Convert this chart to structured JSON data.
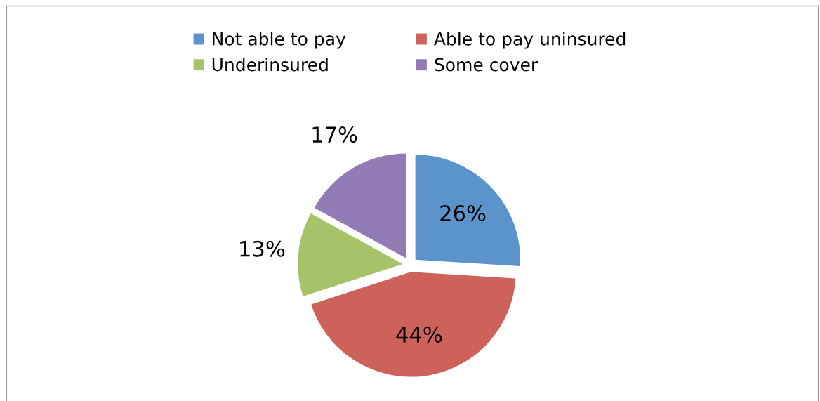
{
  "chart_data": {
    "type": "pie",
    "categories": [
      "Not able to pay",
      "Able to pay uninsured",
      "Underinsured",
      "Some cover"
    ],
    "values": [
      26,
      44,
      13,
      17
    ],
    "colors": [
      "#5b93cb",
      "#cd625a",
      "#a6c36a",
      "#927ab4"
    ],
    "value_labels": [
      "26%",
      "44%",
      "13%",
      "17%"
    ],
    "legend": "top"
  }
}
